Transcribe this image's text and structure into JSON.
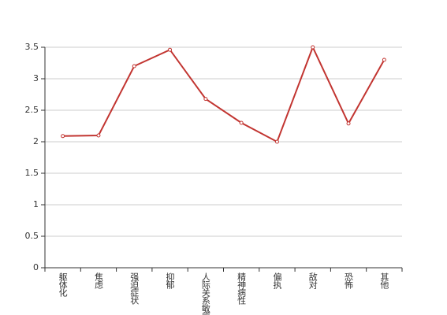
{
  "chart_data": {
    "type": "line",
    "categories": [
      "躯体化",
      "焦虑",
      "强迫症状",
      "抑郁",
      "人际关系敏感",
      "精神病性",
      "偏执",
      "敌对",
      "恐怖",
      "其他"
    ],
    "values": [
      2.09,
      2.1,
      3.2,
      3.46,
      2.68,
      2.3,
      2.0,
      3.5,
      2.29,
      3.3
    ],
    "color": "#c23531",
    "ylim": [
      0,
      3.5
    ],
    "yticks": [
      0,
      0.5,
      1,
      1.5,
      2,
      2.5,
      3,
      3.5
    ],
    "grid": true
  }
}
